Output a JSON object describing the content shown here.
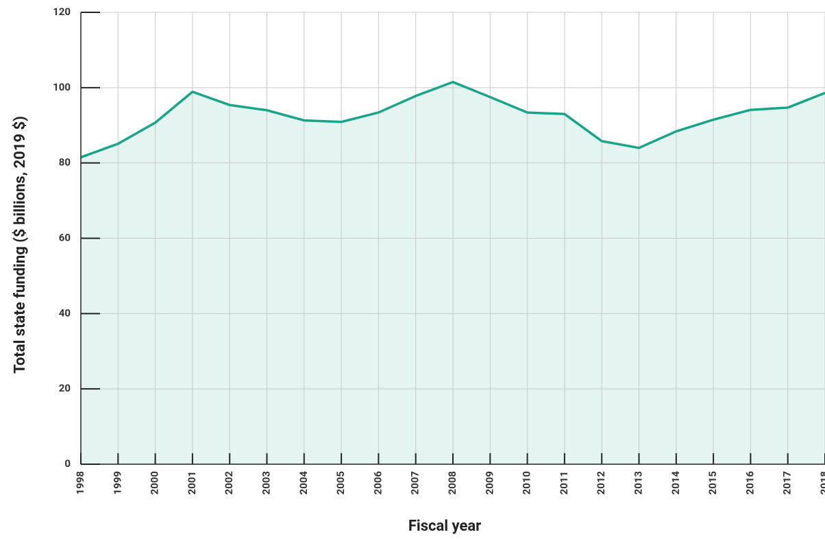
{
  "chart_data": {
    "type": "area",
    "x_label": "Fiscal year",
    "y_label": "Total state funding ($ billions, 2019 $)",
    "x": [
      1998,
      1999,
      2000,
      2001,
      2002,
      2003,
      2004,
      2005,
      2006,
      2007,
      2008,
      2009,
      2010,
      2011,
      2012,
      2013,
      2014,
      2015,
      2016,
      2017,
      2018
    ],
    "series": [
      {
        "color": "#17a589",
        "values": [
          81.5,
          85.1,
          90.7,
          98.9,
          95.4,
          94.0,
          91.3,
          90.9,
          93.4,
          97.8,
          101.5,
          97.5,
          93.4,
          93.0,
          85.8,
          84.0,
          88.4,
          91.5,
          94.1,
          94.7,
          98.6
        ]
      }
    ],
    "xlim": [
      1998,
      2018
    ],
    "xticks": [
      1998,
      1999,
      2000,
      2001,
      2002,
      2003,
      2004,
      2005,
      2006,
      2007,
      2008,
      2009,
      2010,
      2011,
      2012,
      2013,
      2014,
      2015,
      2016,
      2017,
      2018
    ],
    "ylim": [
      0,
      120
    ],
    "yticks": [
      0,
      20,
      40,
      60,
      80,
      100,
      120
    ],
    "grid": true
  }
}
